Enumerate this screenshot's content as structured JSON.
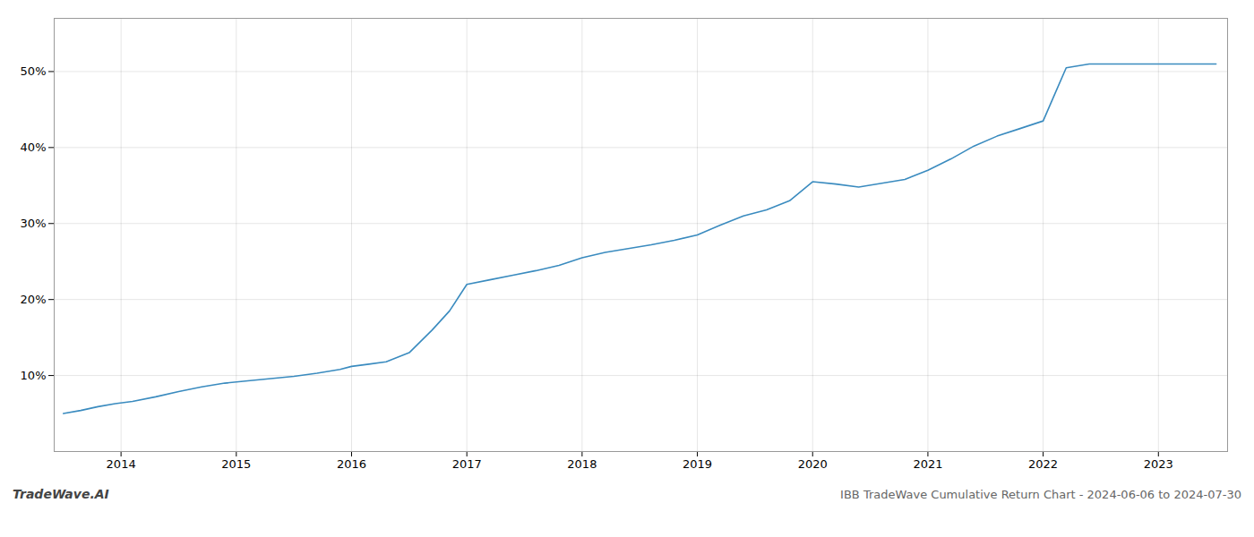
{
  "chart_data": {
    "type": "line",
    "title": "IBB TradeWave Cumulative Return Chart - 2024-06-06 to 2024-07-30",
    "annotations": [
      "TradeWave.AI"
    ],
    "x": [
      2013.5,
      2013.65,
      2013.8,
      2013.95,
      2014.1,
      2014.3,
      2014.5,
      2014.7,
      2014.9,
      2015.1,
      2015.3,
      2015.5,
      2015.7,
      2015.9,
      2016.0,
      2016.15,
      2016.3,
      2016.5,
      2016.7,
      2016.85,
      2017.0,
      2017.2,
      2017.4,
      2017.6,
      2017.8,
      2018.0,
      2018.2,
      2018.4,
      2018.6,
      2018.8,
      2019.0,
      2019.2,
      2019.4,
      2019.6,
      2019.8,
      2020.0,
      2020.2,
      2020.4,
      2020.6,
      2020.8,
      2021.0,
      2021.2,
      2021.4,
      2021.6,
      2021.8,
      2022.0,
      2022.1,
      2022.2,
      2022.4,
      2022.6,
      2022.8,
      2023.0,
      2023.2,
      2023.4,
      2023.5
    ],
    "values": [
      5.0,
      5.4,
      5.9,
      6.3,
      6.6,
      7.2,
      7.9,
      8.5,
      9.0,
      9.3,
      9.6,
      9.9,
      10.3,
      10.8,
      11.2,
      11.5,
      11.8,
      13.0,
      16.0,
      18.5,
      22.0,
      22.6,
      23.2,
      23.8,
      24.5,
      25.5,
      26.2,
      26.7,
      27.2,
      27.8,
      28.5,
      29.8,
      31.0,
      31.8,
      33.0,
      35.5,
      35.2,
      34.8,
      35.3,
      35.8,
      37.0,
      38.5,
      40.2,
      41.5,
      42.5,
      43.5,
      47.0,
      50.5,
      51.0,
      51.0,
      51.0,
      51.0,
      51.0,
      51.0,
      51.0
    ],
    "color": "#3a8bbf",
    "xlim": [
      2013.42,
      2023.6
    ],
    "ylim": [
      0,
      57
    ],
    "xticks": [
      2014,
      2015,
      2016,
      2017,
      2018,
      2019,
      2020,
      2021,
      2022,
      2023
    ],
    "yticks": [
      {
        "value": 10,
        "label": "10%"
      },
      {
        "value": 20,
        "label": "20%"
      },
      {
        "value": 30,
        "label": "30%"
      },
      {
        "value": 40,
        "label": "40%"
      },
      {
        "value": 50,
        "label": "50%"
      }
    ],
    "grid": true
  }
}
